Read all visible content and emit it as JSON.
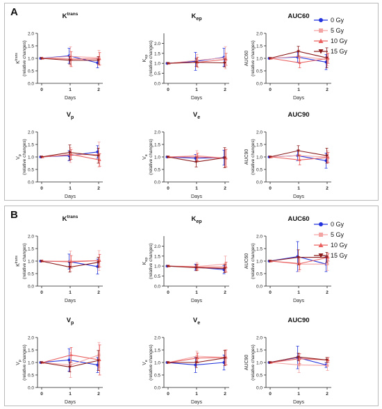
{
  "colors": {
    "0 Gy": "#2233dd",
    "5 Gy": "#f4a3a3",
    "10 Gy": "#e9605f",
    "15 Gy": "#8b1a1a"
  },
  "legend": {
    "items": [
      {
        "label": "0 Gy",
        "marker": "circle"
      },
      {
        "label": "5 Gy",
        "marker": "square"
      },
      {
        "label": "10 Gy",
        "marker": "triangle"
      },
      {
        "label": "15 Gy",
        "marker": "triangle-down"
      }
    ]
  },
  "panels": [
    {
      "label": "A"
    },
    {
      "label": "B"
    }
  ],
  "chart_data": [
    {
      "type": "line",
      "panel": "A",
      "title": "K",
      "title_sup": "trans",
      "title_sub": "",
      "ylabel_main": "K",
      "ylabel_sup": "trans",
      "ylabel_sub": "",
      "ylabel_extra": "(relative changes)",
      "xlabel": "Days",
      "categories": [
        "0",
        "1",
        "2"
      ],
      "yticks": [
        "0.0",
        "0.5",
        "1.0",
        "1.5",
        "2.0"
      ],
      "ylim": [
        0,
        2
      ],
      "series": [
        {
          "name": "0 Gy",
          "values": [
            1.0,
            1.1,
            0.82
          ],
          "errors": [
            0.0,
            0.3,
            0.2
          ]
        },
        {
          "name": "5 Gy",
          "values": [
            1.0,
            1.08,
            1.02
          ],
          "errors": [
            0.0,
            0.38,
            0.3
          ]
        },
        {
          "name": "10 Gy",
          "values": [
            1.0,
            0.97,
            0.98
          ],
          "errors": [
            0.0,
            0.3,
            0.25
          ]
        },
        {
          "name": "15 Gy",
          "values": [
            1.0,
            0.92,
            0.92
          ],
          "errors": [
            0.0,
            0.15,
            0.15
          ]
        }
      ]
    },
    {
      "type": "line",
      "panel": "A",
      "title": "K",
      "title_sup": "",
      "title_sub": "ep",
      "ylabel_main": "K",
      "ylabel_sup": "",
      "ylabel_sub": "ep",
      "ylabel_extra": "(relative changes)",
      "xlabel": "Days",
      "categories": [
        "0",
        "1",
        "2"
      ],
      "yticks": [
        "0.0",
        "0.5",
        "1.0",
        "1.5",
        "2.0"
      ],
      "ylim": [
        0,
        2.5
      ],
      "series": [
        {
          "name": "0 Gy",
          "values": [
            1.0,
            1.1,
            1.3
          ],
          "errors": [
            0.0,
            0.45,
            0.45
          ]
        },
        {
          "name": "5 Gy",
          "values": [
            1.0,
            1.15,
            1.28
          ],
          "errors": [
            0.0,
            0.3,
            0.55
          ]
        },
        {
          "name": "10 Gy",
          "values": [
            1.0,
            1.05,
            1.2
          ],
          "errors": [
            0.0,
            0.25,
            0.3
          ]
        },
        {
          "name": "15 Gy",
          "values": [
            1.0,
            1.05,
            1.02
          ],
          "errors": [
            0.0,
            0.2,
            0.2
          ]
        }
      ]
    },
    {
      "type": "line",
      "panel": "A",
      "title": "AUC60",
      "title_sup": "",
      "title_sub": "",
      "ylabel_main": "AUC60",
      "ylabel_sup": "",
      "ylabel_sub": "",
      "ylabel_extra": "(relative changes)",
      "xlabel": "Days",
      "categories": [
        "0",
        "1",
        "2"
      ],
      "yticks": [
        "0.0",
        "0.5",
        "1.0",
        "1.5",
        "2.0"
      ],
      "ylim": [
        0,
        2
      ],
      "series": [
        {
          "name": "0 Gy",
          "values": [
            1.0,
            1.05,
            0.85
          ],
          "errors": [
            0.0,
            0.2,
            0.3
          ]
        },
        {
          "name": "5 Gy",
          "values": [
            1.0,
            1.08,
            0.95
          ],
          "errors": [
            0.0,
            0.25,
            0.25
          ]
        },
        {
          "name": "10 Gy",
          "values": [
            1.0,
            0.82,
            1.0
          ],
          "errors": [
            0.0,
            0.2,
            0.2
          ]
        },
        {
          "name": "15 Gy",
          "values": [
            1.0,
            1.28,
            1.02
          ],
          "errors": [
            0.0,
            0.2,
            0.4
          ]
        }
      ]
    },
    {
      "type": "line",
      "panel": "A",
      "title": "V",
      "title_sup": "",
      "title_sub": "p",
      "ylabel_main": "V",
      "ylabel_sup": "",
      "ylabel_sub": "p",
      "ylabel_extra": "(relative changes)",
      "xlabel": "Days",
      "categories": [
        "0",
        "1",
        "2"
      ],
      "yticks": [
        "0.0",
        "0.5",
        "1.0",
        "1.5",
        "2.0"
      ],
      "ylim": [
        0,
        2
      ],
      "series": [
        {
          "name": "0 Gy",
          "values": [
            1.0,
            1.05,
            1.2
          ],
          "errors": [
            0.0,
            0.2,
            0.25
          ]
        },
        {
          "name": "5 Gy",
          "values": [
            1.0,
            1.08,
            1.1
          ],
          "errors": [
            0.0,
            0.3,
            0.5
          ]
        },
        {
          "name": "10 Gy",
          "values": [
            1.0,
            1.1,
            0.88
          ],
          "errors": [
            0.0,
            0.2,
            0.25
          ]
        },
        {
          "name": "15 Gy",
          "values": [
            1.0,
            1.18,
            1.05
          ],
          "errors": [
            0.0,
            0.3,
            0.3
          ]
        }
      ]
    },
    {
      "type": "line",
      "panel": "A",
      "title": "V",
      "title_sup": "",
      "title_sub": "e",
      "ylabel_main": "V",
      "ylabel_sup": "",
      "ylabel_sub": "e",
      "ylabel_extra": "(relative changes)",
      "xlabel": "Days",
      "categories": [
        "0",
        "1",
        "2"
      ],
      "yticks": [
        "0.0",
        "0.5",
        "1.0",
        "1.5",
        "2.0"
      ],
      "ylim": [
        0,
        2
      ],
      "series": [
        {
          "name": "0 Gy",
          "values": [
            1.0,
            0.95,
            0.97
          ],
          "errors": [
            0.0,
            0.15,
            0.3
          ]
        },
        {
          "name": "5 Gy",
          "values": [
            1.0,
            1.05,
            0.95
          ],
          "errors": [
            0.0,
            0.2,
            0.35
          ]
        },
        {
          "name": "10 Gy",
          "values": [
            1.0,
            1.0,
            0.95
          ],
          "errors": [
            0.0,
            0.15,
            0.35
          ]
        },
        {
          "name": "15 Gy",
          "values": [
            1.0,
            0.8,
            0.97
          ],
          "errors": [
            0.0,
            0.2,
            0.4
          ]
        }
      ]
    },
    {
      "type": "line",
      "panel": "A",
      "title": "AUC90",
      "title_sup": "",
      "title_sub": "",
      "ylabel_main": "AUC90",
      "ylabel_sup": "",
      "ylabel_sub": "",
      "ylabel_extra": "(relative changes)",
      "xlabel": "Days",
      "categories": [
        "0",
        "1",
        "2"
      ],
      "yticks": [
        "0.0",
        "0.5",
        "1.0",
        "1.5",
        "2.0"
      ],
      "ylim": [
        0,
        2
      ],
      "series": [
        {
          "name": "0 Gy",
          "values": [
            1.0,
            1.05,
            0.85
          ],
          "errors": [
            0.0,
            0.2,
            0.3
          ]
        },
        {
          "name": "5 Gy",
          "values": [
            1.0,
            1.05,
            1.0
          ],
          "errors": [
            0.0,
            0.2,
            0.25
          ]
        },
        {
          "name": "10 Gy",
          "values": [
            1.0,
            0.88,
            0.98
          ],
          "errors": [
            0.0,
            0.2,
            0.2
          ]
        },
        {
          "name": "15 Gy",
          "values": [
            1.0,
            1.25,
            1.05
          ],
          "errors": [
            0.0,
            0.2,
            0.3
          ]
        }
      ]
    },
    {
      "type": "line",
      "panel": "B",
      "title": "K",
      "title_sup": "trans",
      "title_sub": "",
      "ylabel_main": "K",
      "ylabel_sup": "trans",
      "ylabel_sub": "",
      "ylabel_extra": "(relative changes)",
      "xlabel": "Days",
      "categories": [
        "0",
        "1",
        "2"
      ],
      "yticks": [
        "0.0",
        "0.5",
        "1.0",
        "1.5",
        "2.0"
      ],
      "ylim": [
        0,
        2
      ],
      "series": [
        {
          "name": "0 Gy",
          "values": [
            1.0,
            0.98,
            0.78
          ],
          "errors": [
            0.0,
            0.3,
            0.3
          ]
        },
        {
          "name": "5 Gy",
          "values": [
            1.0,
            1.0,
            1.02
          ],
          "errors": [
            0.0,
            0.4,
            0.4
          ]
        },
        {
          "name": "10 Gy",
          "values": [
            1.0,
            0.97,
            1.02
          ],
          "errors": [
            0.0,
            0.25,
            0.25
          ]
        },
        {
          "name": "15 Gy",
          "values": [
            1.0,
            0.76,
            0.95
          ],
          "errors": [
            0.0,
            0.2,
            0.2
          ]
        }
      ]
    },
    {
      "type": "line",
      "panel": "B",
      "title": "K",
      "title_sup": "",
      "title_sub": "ep",
      "ylabel_main": "K",
      "ylabel_sup": "",
      "ylabel_sub": "ep",
      "ylabel_extra": "(relative changes)",
      "xlabel": "Days",
      "categories": [
        "0",
        "1",
        "2"
      ],
      "yticks": [
        "0.0",
        "0.5",
        "1.0",
        "1.5",
        "2.0"
      ],
      "ylim": [
        0,
        2.5
      ],
      "series": [
        {
          "name": "0 Gy",
          "values": [
            1.0,
            0.95,
            0.82
          ],
          "errors": [
            0.0,
            0.15,
            0.2
          ]
        },
        {
          "name": "5 Gy",
          "values": [
            1.0,
            0.98,
            1.1
          ],
          "errors": [
            0.0,
            0.2,
            0.4
          ]
        },
        {
          "name": "10 Gy",
          "values": [
            1.0,
            0.95,
            0.95
          ],
          "errors": [
            0.0,
            0.15,
            0.25
          ]
        },
        {
          "name": "15 Gy",
          "values": [
            1.0,
            0.92,
            0.88
          ],
          "errors": [
            0.0,
            0.15,
            0.2
          ]
        }
      ]
    },
    {
      "type": "line",
      "panel": "B",
      "title": "AUC60",
      "title_sup": "",
      "title_sub": "",
      "ylabel_main": "AUC60",
      "ylabel_sup": "",
      "ylabel_sub": "",
      "ylabel_extra": "(relative changes)",
      "xlabel": "Days",
      "categories": [
        "0",
        "1",
        "2"
      ],
      "yticks": [
        "0.0",
        "0.5",
        "1.0",
        "1.5",
        "2.0"
      ],
      "ylim": [
        0,
        2
      ],
      "series": [
        {
          "name": "0 Gy",
          "values": [
            1.0,
            1.18,
            0.88
          ],
          "errors": [
            0.0,
            0.6,
            0.3
          ]
        },
        {
          "name": "5 Gy",
          "values": [
            1.0,
            0.88,
            0.88
          ],
          "errors": [
            0.0,
            0.3,
            0.25
          ]
        },
        {
          "name": "10 Gy",
          "values": [
            1.0,
            0.9,
            1.15
          ],
          "errors": [
            0.0,
            0.25,
            0.15
          ]
        },
        {
          "name": "15 Gy",
          "values": [
            1.0,
            1.15,
            1.15
          ],
          "errors": [
            0.0,
            0.3,
            0.2
          ]
        }
      ]
    },
    {
      "type": "line",
      "panel": "B",
      "title": "V",
      "title_sup": "",
      "title_sub": "p",
      "ylabel_main": "V",
      "ylabel_sup": "",
      "ylabel_sub": "p",
      "ylabel_extra": "(relative changes)",
      "xlabel": "Days",
      "categories": [
        "0",
        "1",
        "2"
      ],
      "yticks": [
        "0.0",
        "0.5",
        "1.0",
        "1.5",
        "2.0"
      ],
      "ylim": [
        0,
        2
      ],
      "series": [
        {
          "name": "0 Gy",
          "values": [
            1.0,
            1.1,
            0.9
          ],
          "errors": [
            0.0,
            0.45,
            0.3
          ]
        },
        {
          "name": "5 Gy",
          "values": [
            1.0,
            0.9,
            1.3
          ],
          "errors": [
            0.0,
            0.5,
            0.5
          ]
        },
        {
          "name": "10 Gy",
          "values": [
            1.0,
            1.3,
            1.1
          ],
          "errors": [
            0.0,
            0.3,
            0.6
          ]
        },
        {
          "name": "15 Gy",
          "values": [
            1.0,
            0.82,
            1.08
          ],
          "errors": [
            0.0,
            0.2,
            0.4
          ]
        }
      ]
    },
    {
      "type": "line",
      "panel": "B",
      "title": "V",
      "title_sup": "",
      "title_sub": "e",
      "ylabel_main": "V",
      "ylabel_sup": "",
      "ylabel_sub": "e",
      "ylabel_extra": "(relative changes)",
      "xlabel": "Days",
      "categories": [
        "0",
        "1",
        "2"
      ],
      "yticks": [
        "0.0",
        "0.5",
        "1.0",
        "1.5",
        "2.0"
      ],
      "ylim": [
        0,
        2
      ],
      "series": [
        {
          "name": "0 Gy",
          "values": [
            1.0,
            0.9,
            1.0
          ],
          "errors": [
            0.0,
            0.3,
            0.3
          ]
        },
        {
          "name": "5 Gy",
          "values": [
            1.0,
            1.25,
            1.2
          ],
          "errors": [
            0.0,
            0.2,
            0.3
          ]
        },
        {
          "name": "10 Gy",
          "values": [
            1.0,
            1.18,
            1.2
          ],
          "errors": [
            0.0,
            0.2,
            0.3
          ]
        },
        {
          "name": "15 Gy",
          "values": [
            1.0,
            1.0,
            1.18
          ],
          "errors": [
            0.0,
            0.2,
            0.3
          ]
        }
      ]
    },
    {
      "type": "line",
      "panel": "B",
      "title": "AUC90",
      "title_sup": "",
      "title_sub": "",
      "ylabel_main": "AUC90",
      "ylabel_sup": "",
      "ylabel_sub": "",
      "ylabel_extra": "(relative changes)",
      "xlabel": "Days",
      "categories": [
        "0",
        "1",
        "2"
      ],
      "yticks": [
        "0.0",
        "0.5",
        "1.0",
        "1.5",
        "2.0"
      ],
      "ylim": [
        0,
        2
      ],
      "series": [
        {
          "name": "0 Gy",
          "values": [
            1.0,
            1.2,
            0.9
          ],
          "errors": [
            0.0,
            0.45,
            0.1
          ]
        },
        {
          "name": "5 Gy",
          "values": [
            1.0,
            0.9,
            0.88
          ],
          "errors": [
            0.0,
            0.3,
            0.2
          ]
        },
        {
          "name": "10 Gy",
          "values": [
            1.0,
            1.15,
            1.1
          ],
          "errors": [
            0.0,
            0.2,
            0.1
          ]
        },
        {
          "name": "15 Gy",
          "values": [
            1.0,
            1.22,
            1.1
          ],
          "errors": [
            0.0,
            0.15,
            0.1
          ]
        }
      ]
    }
  ]
}
